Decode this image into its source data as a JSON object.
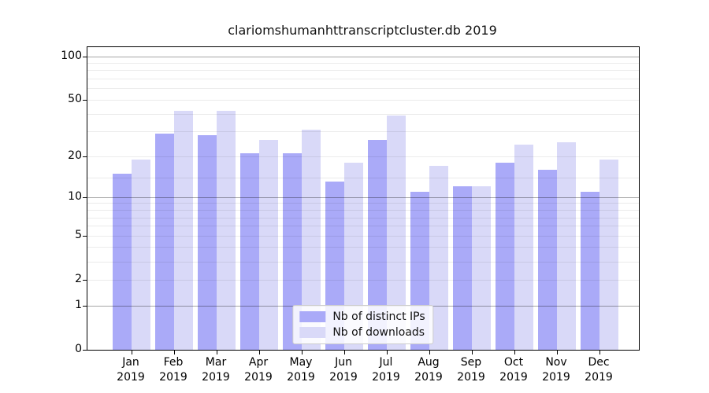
{
  "title": "clariomshumanhttranscriptcluster.db 2019",
  "colors": {
    "ips_bar": "#aaaaf8",
    "downloads_bar": "#d9d9f8",
    "grid_major": "rgba(0,0,0,0.35)",
    "grid_minor": "rgba(0,0,0,0.08)",
    "frame": "#000000",
    "legend_border": "#cccccc"
  },
  "chart_data": {
    "type": "bar",
    "title": "clariomshumanhttranscriptcluster.db 2019",
    "categories": [
      "Jan",
      "Feb",
      "Mar",
      "Apr",
      "May",
      "Jun",
      "Jul",
      "Aug",
      "Sep",
      "Oct",
      "Nov",
      "Dec"
    ],
    "year_label": "2019",
    "series": [
      {
        "name": "Nb of distinct IPs",
        "color": "#aaaaf8",
        "values": [
          15,
          29,
          28,
          21,
          21,
          13,
          26,
          11,
          12,
          18,
          16,
          11
        ]
      },
      {
        "name": "Nb of downloads",
        "color": "#d9d9f8",
        "values": [
          19,
          42,
          42,
          26,
          31,
          18,
          39,
          17,
          12,
          24,
          25,
          19
        ]
      }
    ],
    "yscale": "log10(1+v)",
    "yticks": [
      100,
      50,
      20,
      10,
      5,
      2,
      1,
      0
    ],
    "ylim": [
      0,
      115.7
    ],
    "gridlines": {
      "major": [
        1,
        10,
        100
      ],
      "minor": [
        2,
        3,
        4,
        5,
        6,
        7,
        8,
        9,
        14,
        20,
        30,
        40,
        50,
        60,
        70,
        80,
        90
      ]
    },
    "grid": true,
    "legend_position": "lower center"
  }
}
